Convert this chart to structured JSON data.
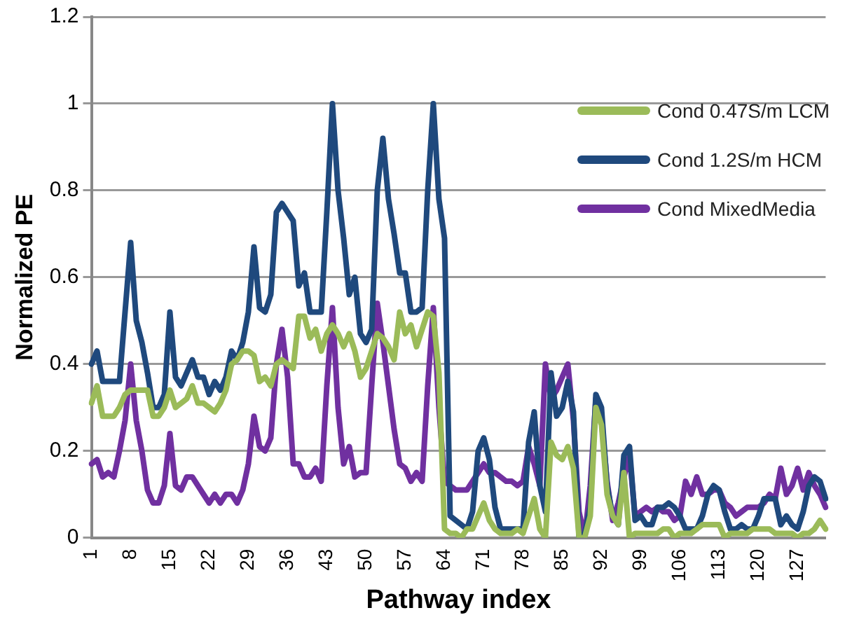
{
  "chart_data": {
    "type": "line",
    "xlabel": "Pathway index",
    "ylabel": "Normalized PE",
    "categories": [
      "1",
      null,
      null,
      null,
      null,
      null,
      null,
      "8",
      null,
      null,
      null,
      null,
      null,
      null,
      "15",
      null,
      null,
      null,
      null,
      null,
      null,
      "22",
      null,
      null,
      null,
      null,
      null,
      null,
      "29",
      null,
      null,
      null,
      null,
      null,
      null,
      "36",
      null,
      null,
      null,
      null,
      null,
      null,
      "43",
      null,
      null,
      null,
      null,
      null,
      null,
      "50",
      null,
      null,
      null,
      null,
      null,
      null,
      "57",
      null,
      null,
      null,
      null,
      null,
      null,
      "64",
      null,
      null,
      null,
      null,
      null,
      null,
      "71",
      null,
      null,
      null,
      null,
      null,
      null,
      "78",
      null,
      null,
      null,
      null,
      null,
      null,
      "85",
      null,
      null,
      null,
      null,
      null,
      null,
      "92",
      null,
      null,
      null,
      null,
      null,
      null,
      "99",
      null,
      null,
      null,
      null,
      null,
      null,
      "106",
      null,
      null,
      null,
      null,
      null,
      null,
      "113",
      null,
      null,
      null,
      null,
      null,
      null,
      "120",
      null,
      null,
      null,
      null,
      null,
      null,
      "127",
      null,
      null,
      null,
      null,
      null
    ],
    "series": [
      {
        "name": "Cond 0.47S/m LCM",
        "color": "#9bbb59",
        "values": [
          0.31,
          0.35,
          0.28,
          0.28,
          0.28,
          0.3,
          0.33,
          0.34,
          0.34,
          0.34,
          0.34,
          0.28,
          0.28,
          0.3,
          0.34,
          0.3,
          0.31,
          0.32,
          0.35,
          0.31,
          0.31,
          0.3,
          0.29,
          0.31,
          0.34,
          0.4,
          0.41,
          0.43,
          0.43,
          0.42,
          0.36,
          0.37,
          0.35,
          0.4,
          0.41,
          0.4,
          0.39,
          0.51,
          0.51,
          0.46,
          0.48,
          0.43,
          0.47,
          0.49,
          0.47,
          0.44,
          0.47,
          0.43,
          0.37,
          0.39,
          0.43,
          0.47,
          0.46,
          0.44,
          0.41,
          0.52,
          0.47,
          0.49,
          0.44,
          0.48,
          0.52,
          0.51,
          0.38,
          0.02,
          0.01,
          0.01,
          0.0,
          0.02,
          0.02,
          0.05,
          0.08,
          0.04,
          0.02,
          0.01,
          0.01,
          0.01,
          0.02,
          0.01,
          0.05,
          0.09,
          0.02,
          0.0,
          0.22,
          0.19,
          0.18,
          0.21,
          0.16,
          0.0,
          0.0,
          0.05,
          0.3,
          0.26,
          0.1,
          0.05,
          0.03,
          0.15,
          0.0,
          0.01,
          0.01,
          0.01,
          0.01,
          0.01,
          0.02,
          0.02,
          0.0,
          0.01,
          0.01,
          0.01,
          0.02,
          0.03,
          0.03,
          0.03,
          0.03,
          0.0,
          0.01,
          0.01,
          0.01,
          0.01,
          0.02,
          0.02,
          0.02,
          0.02,
          0.01,
          0.01,
          0.01,
          0.01,
          0.0,
          0.01,
          0.01,
          0.02,
          0.04,
          0.02
        ]
      },
      {
        "name": "Cond 1.2S/m HCM",
        "color": "#1f497d",
        "values": [
          0.4,
          0.43,
          0.36,
          0.36,
          0.36,
          0.36,
          0.52,
          0.68,
          0.5,
          0.45,
          0.38,
          0.3,
          0.3,
          0.33,
          0.52,
          0.37,
          0.35,
          0.38,
          0.41,
          0.37,
          0.37,
          0.33,
          0.36,
          0.34,
          0.37,
          0.43,
          0.41,
          0.45,
          0.52,
          0.67,
          0.53,
          0.52,
          0.56,
          0.75,
          0.77,
          0.75,
          0.73,
          0.58,
          0.61,
          0.52,
          0.52,
          0.52,
          0.75,
          1.0,
          0.8,
          0.69,
          0.56,
          0.6,
          0.47,
          0.45,
          0.48,
          0.8,
          0.92,
          0.78,
          0.7,
          0.61,
          0.61,
          0.52,
          0.52,
          0.53,
          0.8,
          1.0,
          0.78,
          0.69,
          0.05,
          0.04,
          0.03,
          0.02,
          0.06,
          0.2,
          0.23,
          0.18,
          0.07,
          0.02,
          0.02,
          0.02,
          0.02,
          0.02,
          0.22,
          0.29,
          0.12,
          0.06,
          0.38,
          0.28,
          0.3,
          0.36,
          0.29,
          0.0,
          0.01,
          0.07,
          0.33,
          0.3,
          0.12,
          0.05,
          0.03,
          0.19,
          0.21,
          0.04,
          0.05,
          0.03,
          0.03,
          0.07,
          0.07,
          0.08,
          0.07,
          0.05,
          0.02,
          0.02,
          0.02,
          0.05,
          0.1,
          0.12,
          0.11,
          0.06,
          0.02,
          0.02,
          0.03,
          0.02,
          0.02,
          0.05,
          0.09,
          0.09,
          0.09,
          0.03,
          0.05,
          0.03,
          0.02,
          0.06,
          0.12,
          0.14,
          0.13,
          0.09
        ]
      },
      {
        "name": "Cond MixedMedia",
        "color": "#7030a0",
        "values": [
          0.17,
          0.18,
          0.14,
          0.15,
          0.14,
          0.2,
          0.27,
          0.4,
          0.27,
          0.2,
          0.11,
          0.08,
          0.08,
          0.12,
          0.24,
          0.12,
          0.11,
          0.14,
          0.14,
          0.12,
          0.1,
          0.08,
          0.1,
          0.08,
          0.1,
          0.1,
          0.08,
          0.11,
          0.17,
          0.28,
          0.21,
          0.2,
          0.23,
          0.4,
          0.48,
          0.37,
          0.17,
          0.17,
          0.14,
          0.14,
          0.16,
          0.13,
          0.35,
          0.53,
          0.3,
          0.17,
          0.21,
          0.14,
          0.15,
          0.15,
          0.35,
          0.54,
          0.45,
          0.35,
          0.25,
          0.17,
          0.16,
          0.13,
          0.15,
          0.13,
          0.35,
          0.53,
          0.3,
          0.13,
          0.12,
          0.11,
          0.11,
          0.11,
          0.13,
          0.15,
          0.17,
          0.15,
          0.15,
          0.14,
          0.13,
          0.13,
          0.12,
          0.13,
          0.21,
          0.17,
          0.12,
          0.4,
          0.32,
          0.34,
          0.37,
          0.4,
          0.27,
          0.06,
          0.0,
          0.12,
          0.32,
          0.27,
          0.13,
          0.04,
          0.08,
          0.14,
          0.19,
          0.05,
          0.06,
          0.07,
          0.06,
          0.07,
          0.06,
          0.06,
          0.04,
          0.05,
          0.13,
          0.1,
          0.14,
          0.1,
          0.1,
          0.11,
          0.11,
          0.08,
          0.07,
          0.05,
          0.06,
          0.07,
          0.07,
          0.07,
          0.08,
          0.1,
          0.09,
          0.16,
          0.1,
          0.12,
          0.16,
          0.11,
          0.15,
          0.12,
          0.1,
          0.07
        ]
      }
    ],
    "ylim": [
      0,
      1.2
    ],
    "yticks": [
      0,
      0.2,
      0.4,
      0.6,
      0.8,
      1,
      1.2
    ],
    "grid": "y",
    "legend": "top right",
    "marker": "none",
    "line_style": "solid"
  }
}
